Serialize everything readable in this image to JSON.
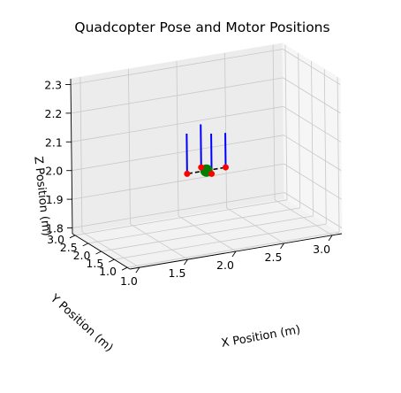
{
  "chart_data": {
    "type": "scatter3d",
    "title": "Quadcopter Pose and Motor Positions",
    "xlabel": "X Position (m)",
    "ylabel": "Y Position (m)",
    "zlabel": "Z Position (m)",
    "x_ticks": [
      "1.0",
      "1.5",
      "2.0",
      "2.5",
      "3.0"
    ],
    "y_ticks": [
      "1.0",
      "1.5",
      "2.0",
      "2.5",
      "3.0"
    ],
    "z_ticks": [
      "1.8",
      "1.9",
      "2.0",
      "2.1",
      "2.2",
      "2.3"
    ],
    "xlim": [
      0.9,
      3.1
    ],
    "ylim": [
      0.9,
      3.1
    ],
    "zlim": [
      1.78,
      2.32
    ],
    "grid": true,
    "center": {
      "x": 2.0,
      "y": 2.0,
      "z": 2.0,
      "color": "#008000"
    },
    "motors": [
      {
        "x": 2.2,
        "y": 2.0,
        "z": 2.0,
        "thrust_top_z": 2.12
      },
      {
        "x": 1.8,
        "y": 2.0,
        "z": 2.0,
        "thrust_top_z": 2.14
      },
      {
        "x": 2.0,
        "y": 2.2,
        "z": 2.0,
        "thrust_top_z": 2.15
      },
      {
        "x": 2.0,
        "y": 1.8,
        "z": 2.0,
        "thrust_top_z": 2.14
      }
    ],
    "motor_color": "#ff0000",
    "thrust_color": "#0000ff",
    "arm_color": "#000000"
  }
}
